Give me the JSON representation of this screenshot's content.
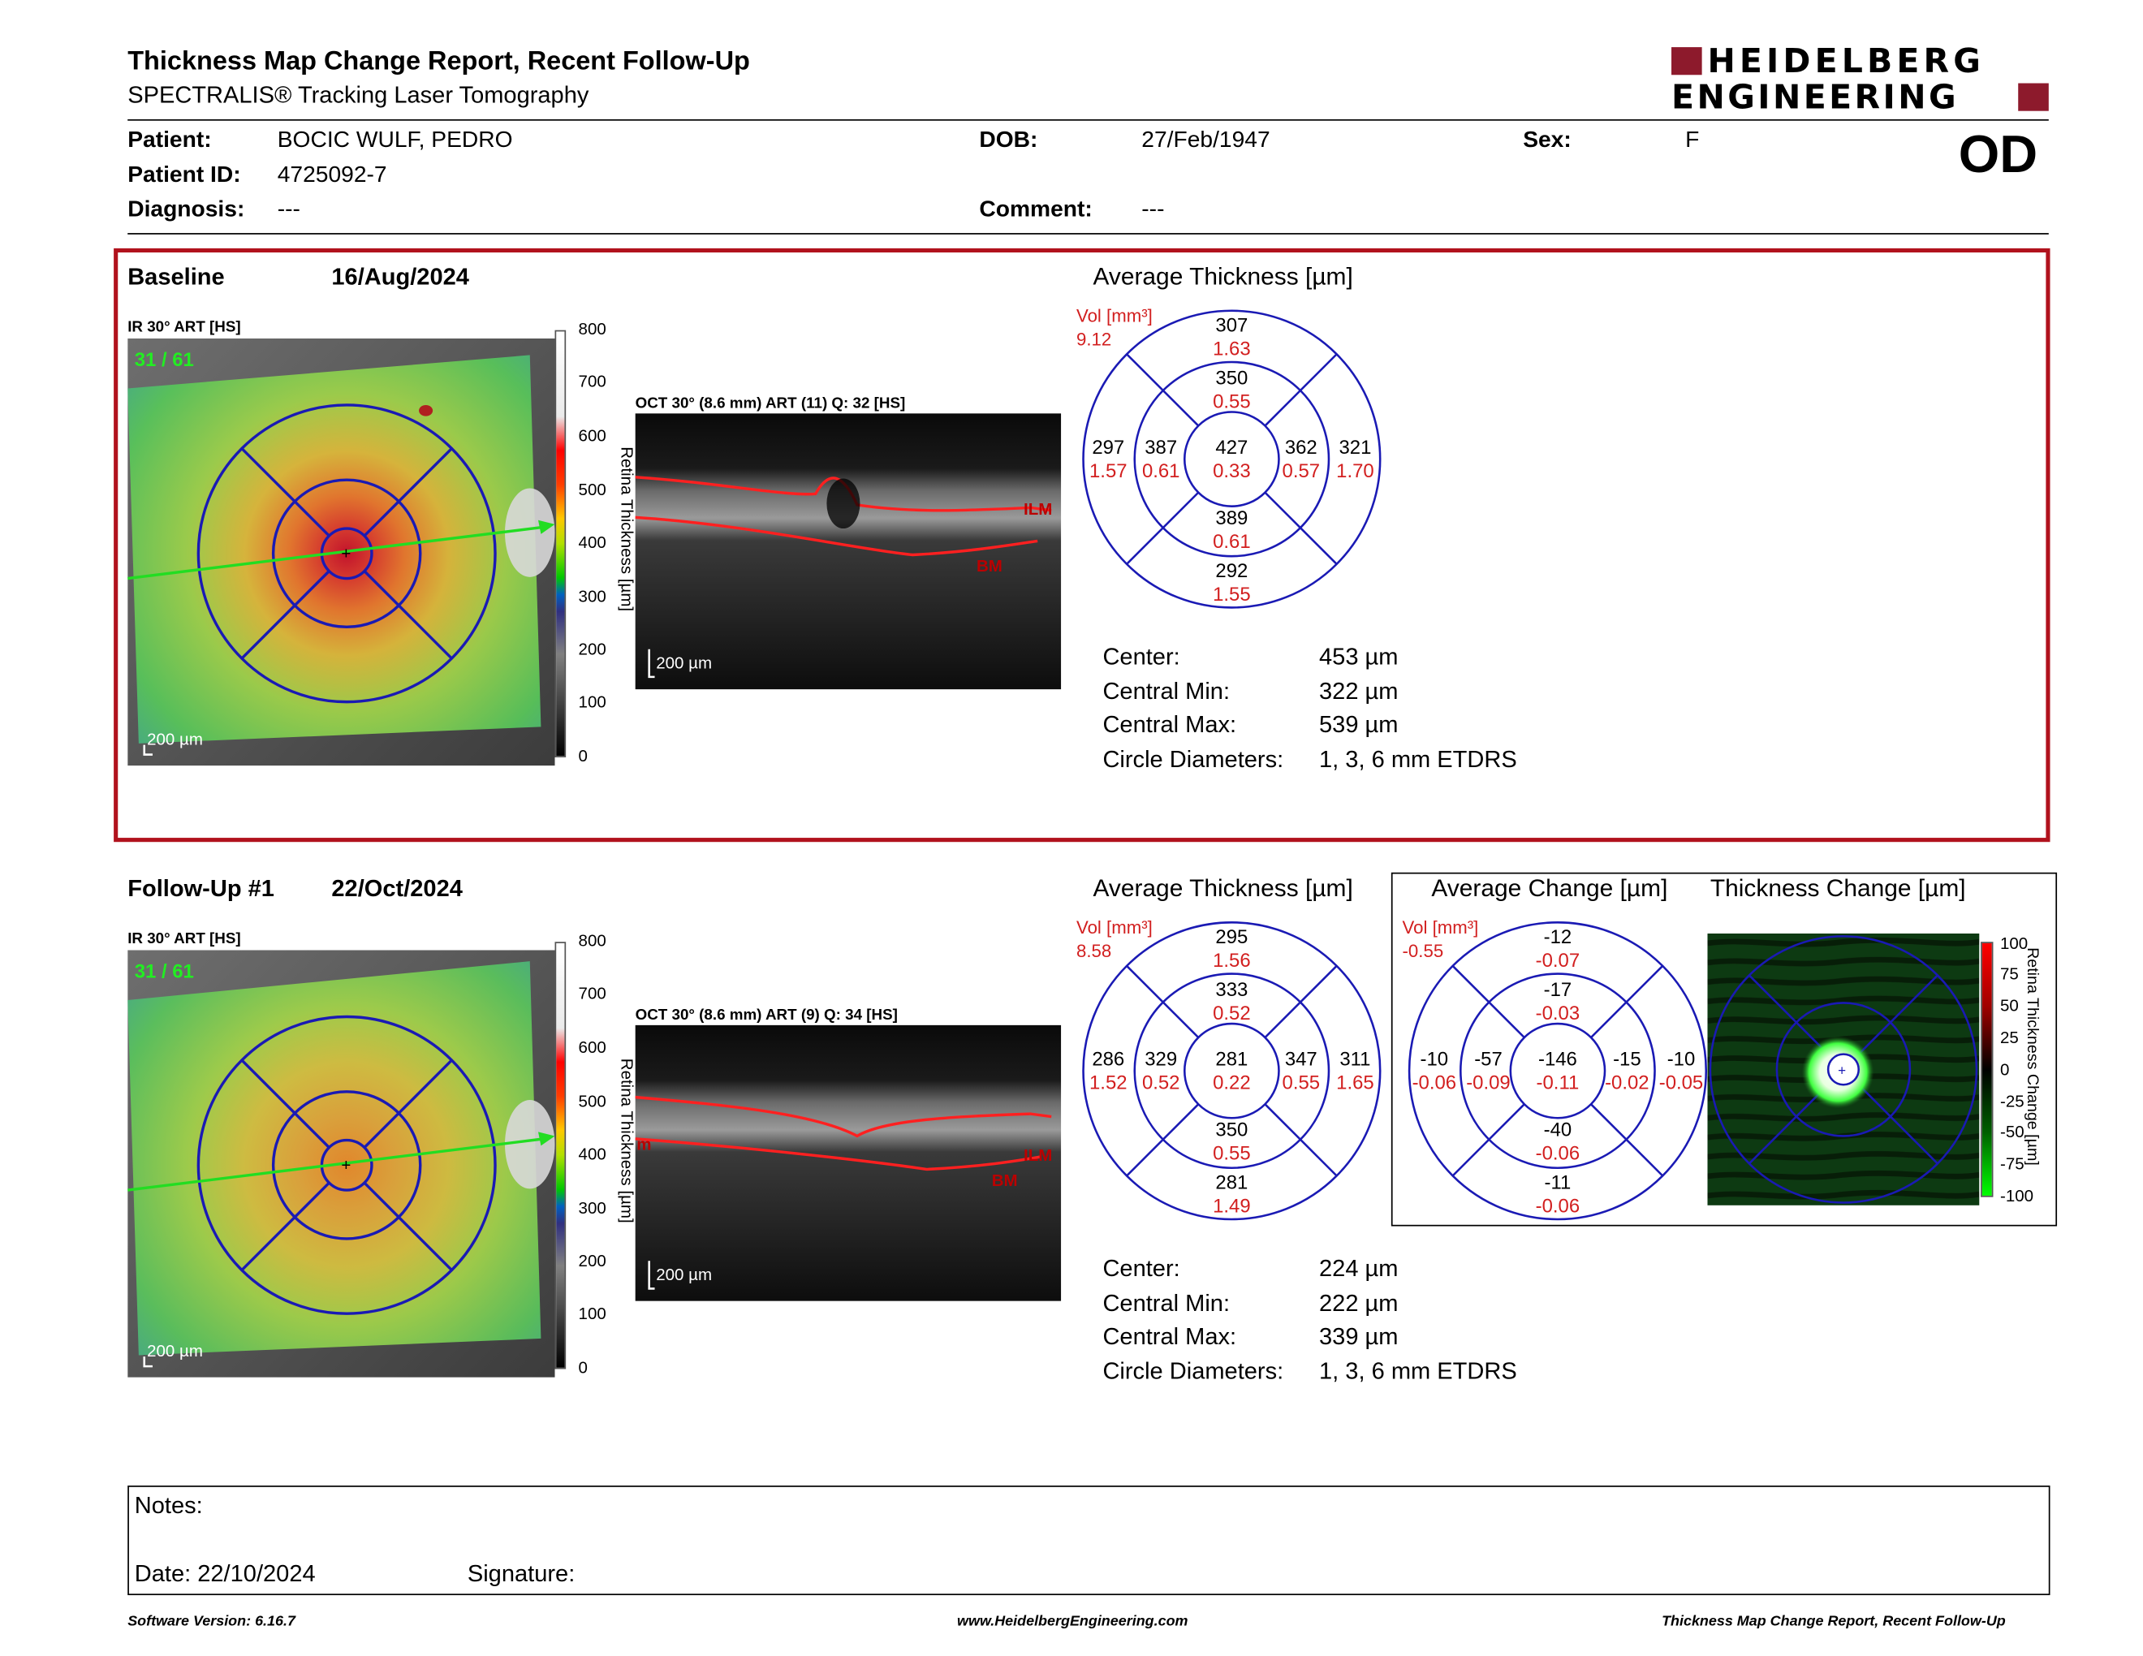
{
  "header": {
    "title": "Thickness Map Change Report, Recent Follow-Up",
    "subtitle": "SPECTRALIS® Tracking Laser Tomography",
    "logo_line1": "HEIDELBERG",
    "logo_line2": "ENGINEERING",
    "eye": "OD"
  },
  "patient": {
    "patient_label": "Patient:",
    "patient_value": "BOCIC WULF, PEDRO",
    "id_label": "Patient ID:",
    "id_value": "4725092-7",
    "diag_label": "Diagnosis:",
    "diag_value": "---",
    "dob_label": "DOB:",
    "dob_value": "27/Feb/1947",
    "comment_label": "Comment:",
    "comment_value": "---",
    "sex_label": "Sex:",
    "sex_value": "F"
  },
  "baseline": {
    "label": "Baseline",
    "date": "16/Aug/2024",
    "ir_label": "IR 30° ART [HS]",
    "ir_counter": "31 / 61",
    "oct_label": "OCT 30° (8.6 mm) ART (11) Q: 32 [HS]",
    "scale_bar": "200 µm",
    "ilm": "ILM",
    "bm": "BM",
    "avg_title": "Average Thickness [µm]",
    "vol_label": "Vol [mm³]",
    "vol_value": "9.12",
    "etdrs": {
      "outer_sup": "307",
      "outer_sup_vol": "1.63",
      "inner_sup": "350",
      "inner_sup_vol": "0.55",
      "outer_temp": "297",
      "outer_temp_vol": "1.57",
      "inner_temp": "387",
      "inner_temp_vol": "0.61",
      "center": "427",
      "center_vol": "0.33",
      "inner_nas": "362",
      "inner_nas_vol": "0.57",
      "outer_nas": "321",
      "outer_nas_vol": "1.70",
      "inner_inf": "389",
      "inner_inf_vol": "0.61",
      "outer_inf": "292",
      "outer_inf_vol": "1.55"
    },
    "metrics": {
      "center_label": "Center:",
      "center_value": "453 µm",
      "min_label": "Central Min:",
      "min_value": "322 µm",
      "max_label": "Central Max:",
      "max_value": "539 µm",
      "circ_label": "Circle Diameters:",
      "circ_value": "1, 3, 6 mm ETDRS"
    }
  },
  "followup": {
    "label": "Follow-Up #1",
    "date": "22/Oct/2024",
    "ir_label": "IR 30° ART [HS]",
    "ir_counter": "31 / 61",
    "oct_label": "OCT 30° (8.6 mm) ART (9) Q: 34 [HS]",
    "scale_bar": "200 µm",
    "ilm": "ILM",
    "bm": "BM",
    "edge_label": "m",
    "avg_title": "Average Thickness [µm]",
    "vol_label": "Vol [mm³]",
    "vol_value": "8.58",
    "etdrs": {
      "outer_sup": "295",
      "outer_sup_vol": "1.56",
      "inner_sup": "333",
      "inner_sup_vol": "0.52",
      "outer_temp": "286",
      "outer_temp_vol": "1.52",
      "inner_temp": "329",
      "inner_temp_vol": "0.52",
      "center": "281",
      "center_vol": "0.22",
      "inner_nas": "347",
      "inner_nas_vol": "0.55",
      "outer_nas": "311",
      "outer_nas_vol": "1.65",
      "inner_inf": "350",
      "inner_inf_vol": "0.55",
      "outer_inf": "281",
      "outer_inf_vol": "1.49"
    },
    "change_title": "Average Change [µm]",
    "change_vol_label": "Vol [mm³]",
    "change_vol_value": "-0.55",
    "change": {
      "outer_sup": "-12",
      "outer_sup_vol": "-0.07",
      "inner_sup": "-17",
      "inner_sup_vol": "-0.03",
      "outer_temp": "-10",
      "outer_temp_vol": "-0.06",
      "inner_temp": "-57",
      "inner_temp_vol": "-0.09",
      "center": "-146",
      "center_vol": "-0.11",
      "inner_nas": "-15",
      "inner_nas_vol": "-0.02",
      "outer_nas": "-10",
      "outer_nas_vol": "-0.05",
      "inner_inf": "-40",
      "inner_inf_vol": "-0.06",
      "outer_inf": "-11",
      "outer_inf_vol": "-0.06"
    },
    "thick_change_title": "Thickness Change [µm]",
    "metrics": {
      "center_label": "Center:",
      "center_value": "224 µm",
      "min_label": "Central Min:",
      "min_value": "222 µm",
      "max_label": "Central Max:",
      "max_value": "339 µm",
      "circ_label": "Circle Diameters:",
      "circ_value": "1, 3, 6 mm ETDRS"
    }
  },
  "thickness_scale": {
    "ticks": [
      "800",
      "700",
      "600",
      "500",
      "400",
      "300",
      "200",
      "100",
      "0"
    ],
    "label": "Retina Thickness [µm]"
  },
  "change_scale": {
    "ticks": [
      "100",
      "75",
      "50",
      "25",
      "0",
      "-25",
      "-50",
      "-75",
      "-100"
    ],
    "label": "Retina Thickness Change [µm]"
  },
  "notes": {
    "notes_label": "Notes:",
    "date_label": "Date: 22/10/2024",
    "signature_label": "Signature:"
  },
  "footer": {
    "left": "Software Version: 6.16.7",
    "center": "www.HeidelbergEngineering.com",
    "right": "Thickness Map Change Report, Recent Follow-Up"
  },
  "colors": {
    "accent_red": "#b1121d",
    "ring_blue": "#1a1ab4",
    "data_red": "#d21f1f",
    "logo_maroon": "#8d1a2c"
  }
}
